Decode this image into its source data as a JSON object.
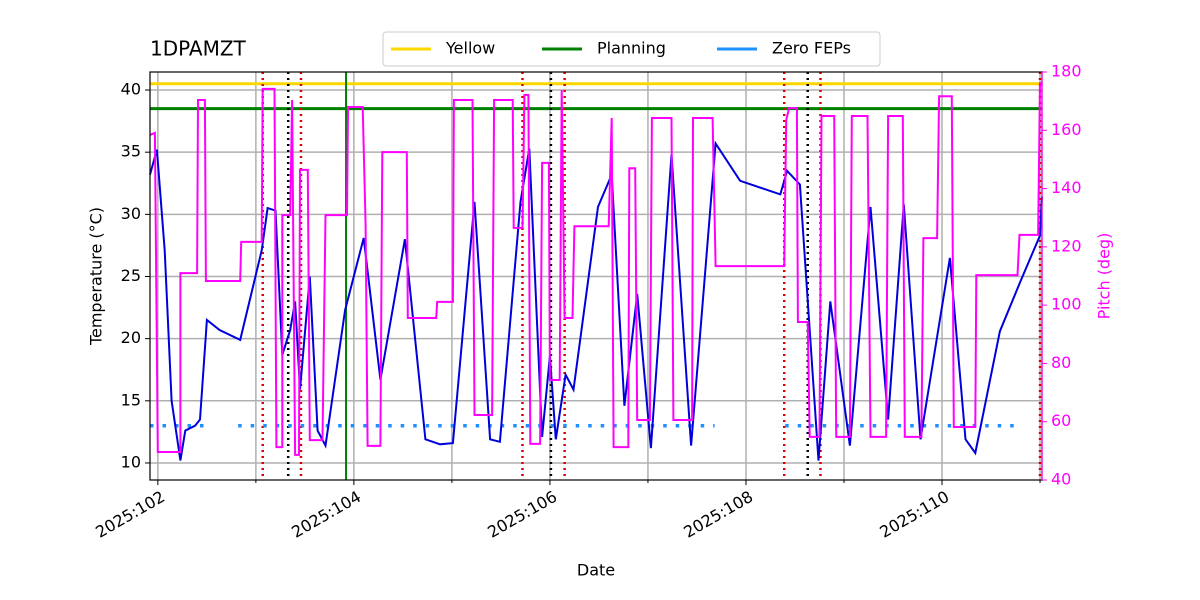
{
  "chart_data": {
    "type": "line",
    "title": "1DPAMZT",
    "xlabel": "Date",
    "ylabel": "Temperature (°C)",
    "y2label": "Pitch (deg)",
    "xlim": [
      101.92,
      111.02
    ],
    "ylim": [
      8.63,
      41.45
    ],
    "y2lim": [
      40,
      180
    ],
    "xticks": [
      {
        "value": 102,
        "label": "2025:102"
      },
      {
        "value": 104,
        "label": "2025:104"
      },
      {
        "value": 106,
        "label": "2025:106"
      },
      {
        "value": 108,
        "label": "2025:108"
      },
      {
        "value": 110,
        "label": "2025:110"
      }
    ],
    "xticks_minor": [
      103,
      105,
      107,
      109,
      111
    ],
    "yticks": [
      10,
      15,
      20,
      25,
      30,
      35,
      40
    ],
    "y2ticks": [
      40,
      60,
      80,
      100,
      120,
      140,
      160,
      180
    ],
    "grid": true,
    "legend": "upper center",
    "y2color": "#ff00ff",
    "hlines": [
      {
        "name": "Yellow",
        "value": 40.5,
        "color": "#ffd700"
      },
      {
        "name": "Planning",
        "value": 38.5,
        "color": "#008000"
      }
    ],
    "vlines": [
      {
        "x": 103.07,
        "color": "#dd0000",
        "style": "dotted"
      },
      {
        "x": 103.46,
        "color": "#dd0000",
        "style": "dotted"
      },
      {
        "x": 105.72,
        "color": "#dd0000",
        "style": "dotted"
      },
      {
        "x": 106.15,
        "color": "#dd0000",
        "style": "dotted"
      },
      {
        "x": 108.39,
        "color": "#dd0000",
        "style": "dotted"
      },
      {
        "x": 108.76,
        "color": "#dd0000",
        "style": "dotted"
      },
      {
        "x": 111.0,
        "color": "#dd0000",
        "style": "dotted"
      },
      {
        "x": 103.33,
        "color": "#000000",
        "style": "dotted"
      },
      {
        "x": 106.01,
        "color": "#000000",
        "style": "dotted"
      },
      {
        "x": 108.63,
        "color": "#000000",
        "style": "dotted"
      },
      {
        "x": 103.92,
        "color": "#008000",
        "style": "solid"
      }
    ],
    "series": [
      {
        "name": "Zero FEPs",
        "color": "#1e90ff",
        "style": "dotted",
        "x": [
          101.92,
          102.5,
          102.6,
          102.82,
          107.68,
          108.0,
          108.4,
          110.8
        ],
        "values": [
          13,
          13,
          null,
          13,
          13,
          null,
          13,
          13
        ]
      },
      {
        "color": "#0000dd",
        "style": "solid",
        "x": [
          101.92,
          101.99,
          102.07,
          102.14,
          102.23,
          102.28,
          102.38,
          102.43,
          102.5,
          102.63,
          102.84,
          103.06,
          103.12,
          103.2,
          103.27,
          103.35,
          103.4,
          103.45,
          103.55,
          103.63,
          103.71,
          103.91,
          104.1,
          104.27,
          104.52,
          104.73,
          104.88,
          105.01,
          105.23,
          105.39,
          105.49,
          105.7,
          105.79,
          105.92,
          106.0,
          106.06,
          106.16,
          106.24,
          106.49,
          106.63,
          106.76,
          106.89,
          107.03,
          107.24,
          107.44,
          107.69,
          107.94,
          108.35,
          108.42,
          108.55,
          108.65,
          108.74,
          108.86,
          109.06,
          109.27,
          109.45,
          109.61,
          109.78,
          110.08,
          110.24,
          110.34,
          110.59,
          110.8,
          111.0,
          111.02
        ],
        "values": [
          33.2,
          35.2,
          27.1,
          15.0,
          10.2,
          12.6,
          13.0,
          13.5,
          21.5,
          20.7,
          19.9,
          27.1,
          30.5,
          30.3,
          18.7,
          20.7,
          23.0,
          15.9,
          25.0,
          12.6,
          11.4,
          22.3,
          28.1,
          16.7,
          28.0,
          11.9,
          11.5,
          11.6,
          31.0,
          11.9,
          11.7,
          31.0,
          35.3,
          12.1,
          18.6,
          11.9,
          17.1,
          15.9,
          30.6,
          33.2,
          14.6,
          23.6,
          11.2,
          34.8,
          11.4,
          35.7,
          32.7,
          31.6,
          33.5,
          32.4,
          20.7,
          10.2,
          23.0,
          11.4,
          30.6,
          13.5,
          30.8,
          11.9,
          26.5,
          11.9,
          10.8,
          20.6,
          24.6,
          28.3,
          31.4
        ]
      },
      {
        "color": "#ff00ff",
        "style": "solid",
        "axis": "y2",
        "x": [
          101.92,
          101.97,
          102.0,
          102.23,
          102.23,
          102.4,
          102.41,
          102.48,
          102.49,
          102.84,
          102.85,
          103.06,
          103.07,
          103.19,
          103.21,
          103.27,
          103.27,
          103.35,
          103.37,
          103.4,
          103.44,
          103.45,
          103.53,
          103.55,
          103.68,
          103.71,
          103.93,
          103.94,
          104.09,
          104.12,
          104.14,
          104.27,
          104.29,
          104.54,
          104.55,
          104.84,
          104.85,
          105.01,
          105.02,
          105.21,
          105.23,
          105.41,
          105.43,
          105.62,
          105.63,
          105.72,
          105.74,
          105.78,
          105.8,
          105.9,
          105.92,
          105.99,
          106.0,
          106.1,
          106.12,
          106.15,
          106.23,
          106.25,
          106.6,
          106.63,
          106.65,
          106.8,
          106.81,
          106.87,
          106.89,
          107.02,
          107.04,
          107.24,
          107.26,
          107.45,
          107.46,
          107.66,
          107.69,
          108.39,
          108.41,
          108.44,
          108.52,
          108.53,
          108.63,
          108.65,
          108.75,
          108.77,
          108.9,
          108.92,
          109.06,
          109.08,
          109.24,
          109.27,
          109.43,
          109.45,
          109.6,
          109.62,
          109.79,
          109.81,
          109.95,
          109.97,
          110.1,
          110.12,
          110.34,
          110.35,
          110.77,
          110.79,
          110.98,
          111.0,
          111.02
        ],
        "values": [
          158.4,
          159.1,
          49.6,
          49.6,
          111.0,
          111.0,
          170.4,
          170.4,
          108.3,
          108.3,
          121.7,
          121.7,
          174.2,
          174.2,
          51.3,
          51.3,
          130.9,
          130.9,
          170.4,
          48.6,
          48.6,
          146.4,
          146.4,
          53.7,
          53.7,
          130.9,
          130.9,
          168.0,
          168.0,
          127.5,
          51.7,
          51.7,
          152.5,
          152.5,
          95.6,
          95.6,
          101.1,
          101.1,
          170.4,
          170.4,
          62.3,
          62.3,
          170.4,
          170.4,
          126.5,
          126.5,
          172.1,
          172.1,
          52.4,
          52.4,
          148.8,
          148.8,
          74.3,
          74.3,
          173.8,
          95.6,
          95.6,
          127.1,
          127.1,
          164.2,
          51.3,
          51.3,
          147.0,
          147.0,
          60.6,
          60.6,
          164.2,
          164.2,
          60.6,
          60.6,
          164.2,
          164.2,
          113.4,
          113.4,
          163.5,
          167.6,
          167.6,
          94.2,
          94.2,
          54.8,
          54.8,
          164.9,
          164.9,
          54.8,
          54.8,
          164.9,
          164.9,
          54.8,
          54.8,
          164.9,
          164.9,
          54.8,
          54.8,
          123.0,
          123.0,
          171.7,
          171.7,
          58.2,
          58.2,
          110.3,
          110.3,
          124.1,
          124.1,
          176.2,
          176.2
        ]
      }
    ]
  }
}
